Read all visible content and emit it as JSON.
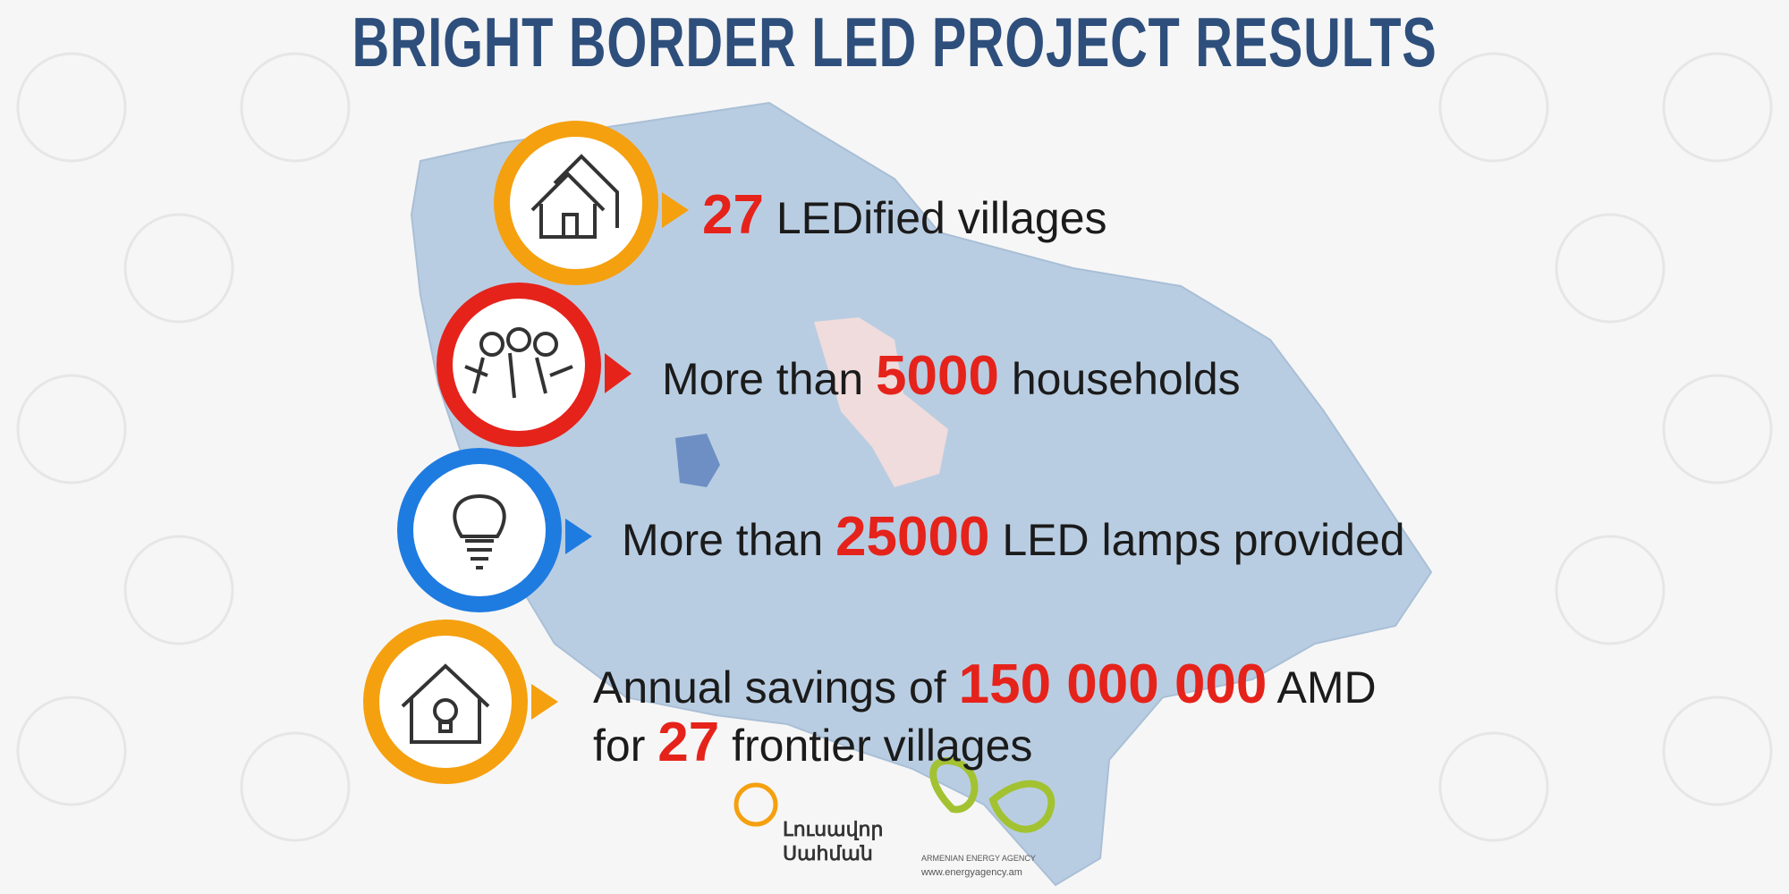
{
  "header": {
    "title": "BRIGHT BORDER LED PROJECT RESULTS"
  },
  "items": [
    {
      "number": "27",
      "suffix": "LEDified villages"
    },
    {
      "prefix": "More than",
      "number": "5000",
      "suffix": "households"
    },
    {
      "prefix": "More than",
      "number": "25000",
      "suffix": "LED lamps provided"
    },
    {
      "prefix": "Annual savings of",
      "number": "150 000 000",
      "suffix": "AMD",
      "line2_prefix": "for",
      "line2_number": "27",
      "line2_suffix": "frontier villages"
    }
  ],
  "logos": {
    "bright_border": [
      "Լուսավոր",
      "Սահման"
    ],
    "agency_name": "ARMENIAN ENERGY AGENCY",
    "agency_url": "www.energyagency.am"
  }
}
